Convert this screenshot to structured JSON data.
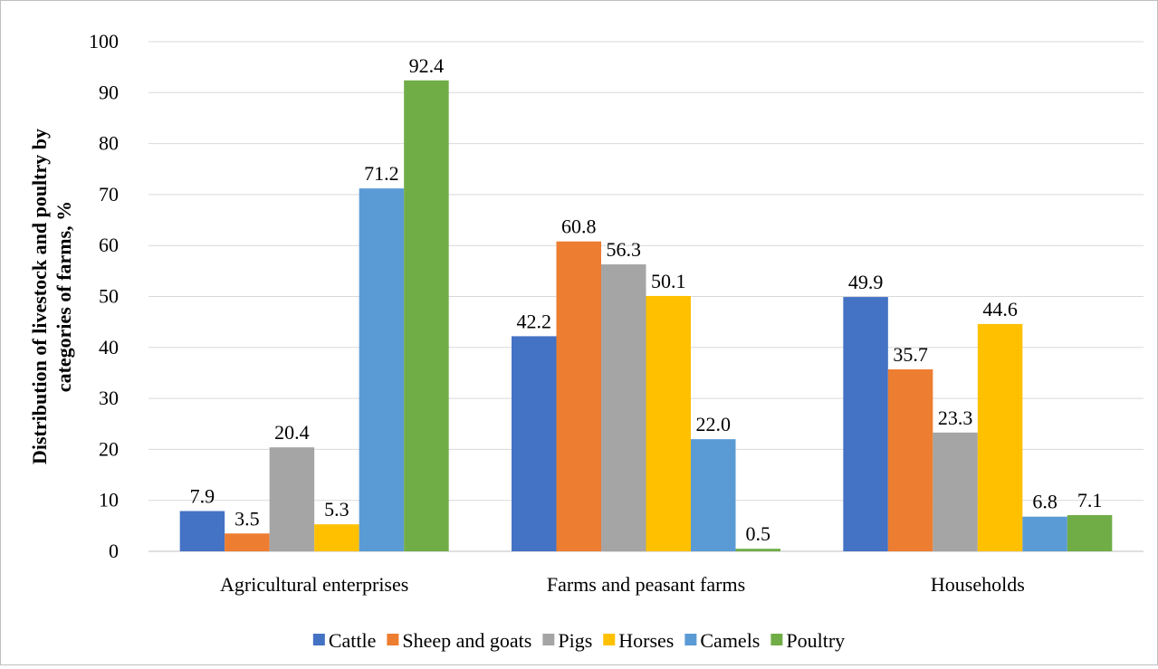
{
  "chart_data": {
    "type": "bar",
    "title": "",
    "xlabel": "",
    "ylabel": [
      "Distribution of livestock and poultry by",
      "categories of farms, %"
    ],
    "ylim": [
      0,
      100
    ],
    "yticks": [
      0,
      10,
      20,
      30,
      40,
      50,
      60,
      70,
      80,
      90,
      100
    ],
    "grid": true,
    "legend_position": "bottom",
    "categories": [
      "Agricultural enterprises",
      "Farms and peasant farms",
      "Households"
    ],
    "series": [
      {
        "name": "Cattle",
        "color": "#4472C4",
        "values": [
          7.9,
          42.2,
          49.9
        ],
        "labels": [
          "7.9",
          "42.2",
          "49.9"
        ]
      },
      {
        "name": "Sheep and goats",
        "color": "#ED7D31",
        "values": [
          3.5,
          60.8,
          35.7
        ],
        "labels": [
          "3.5",
          "60.8",
          "35.7"
        ]
      },
      {
        "name": "Pigs",
        "color": "#A5A5A5",
        "values": [
          20.4,
          56.3,
          23.3
        ],
        "labels": [
          "20.4",
          "56.3",
          "23.3"
        ]
      },
      {
        "name": "Horses",
        "color": "#FFC000",
        "values": [
          5.3,
          50.1,
          44.6
        ],
        "labels": [
          "5.3",
          "50.1",
          "44.6"
        ]
      },
      {
        "name": "Camels",
        "color": "#5B9BD5",
        "values": [
          71.2,
          22.0,
          6.8
        ],
        "labels": [
          "71.2",
          "22.0",
          "6.8"
        ]
      },
      {
        "name": "Poultry",
        "color": "#70AD47",
        "values": [
          92.4,
          0.5,
          7.1
        ],
        "labels": [
          "92.4",
          "0.5",
          "7.1"
        ]
      }
    ]
  }
}
